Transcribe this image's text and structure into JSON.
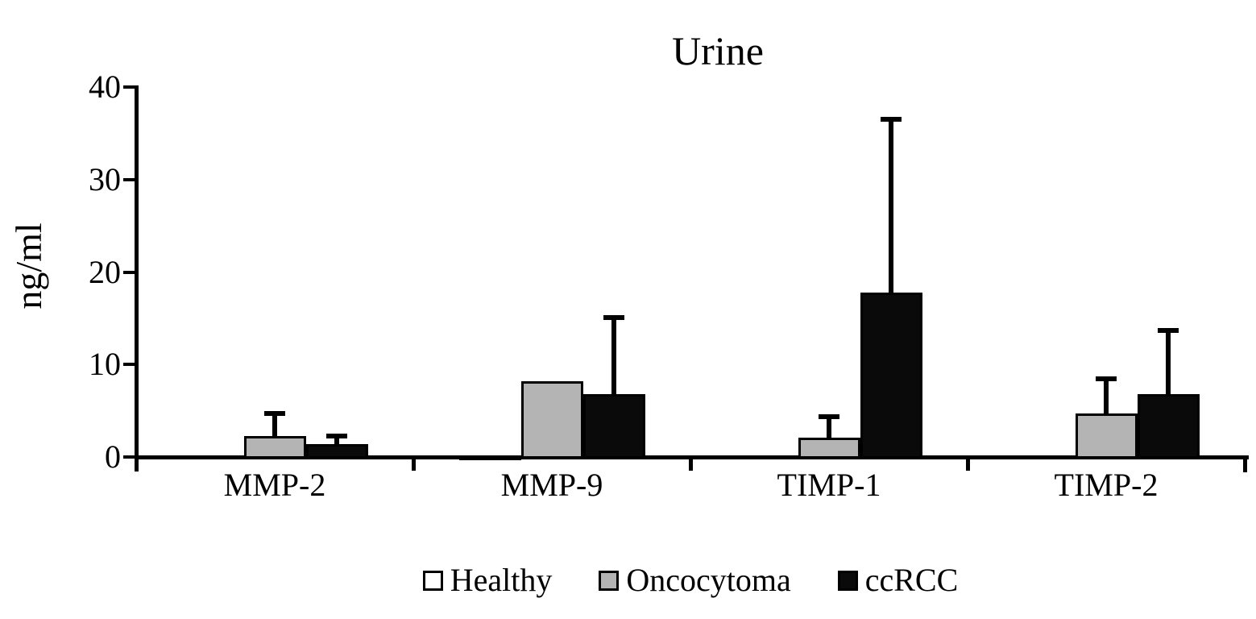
{
  "chart_data": {
    "type": "bar",
    "title": "Urine",
    "ylabel": "ng/ml",
    "xlabel": "",
    "ylim": [
      0,
      40
    ],
    "yticks": [
      0,
      10,
      20,
      30,
      40
    ],
    "grid": false,
    "legend_position": "bottom",
    "categories": [
      "MMP-2",
      "MMP-9",
      "TIMP-1",
      "TIMP-2"
    ],
    "series": [
      {
        "name": "Healthy",
        "color": "#ffffff",
        "values": [
          0,
          0.2,
          0,
          0
        ],
        "error_up": [
          0,
          0,
          0,
          0
        ]
      },
      {
        "name": "Oncocytoma",
        "color": "#b4b4b4",
        "values": [
          2.3,
          8.2,
          2.1,
          4.7
        ],
        "error_up": [
          2.7,
          0,
          2.5,
          4.0
        ]
      },
      {
        "name": "ccRCC",
        "color": "#0a0a0a",
        "values": [
          1.4,
          6.8,
          17.8,
          6.8
        ],
        "error_up": [
          1.1,
          8.5,
          19.0,
          7.1
        ]
      }
    ],
    "axis_color": "#000000"
  }
}
